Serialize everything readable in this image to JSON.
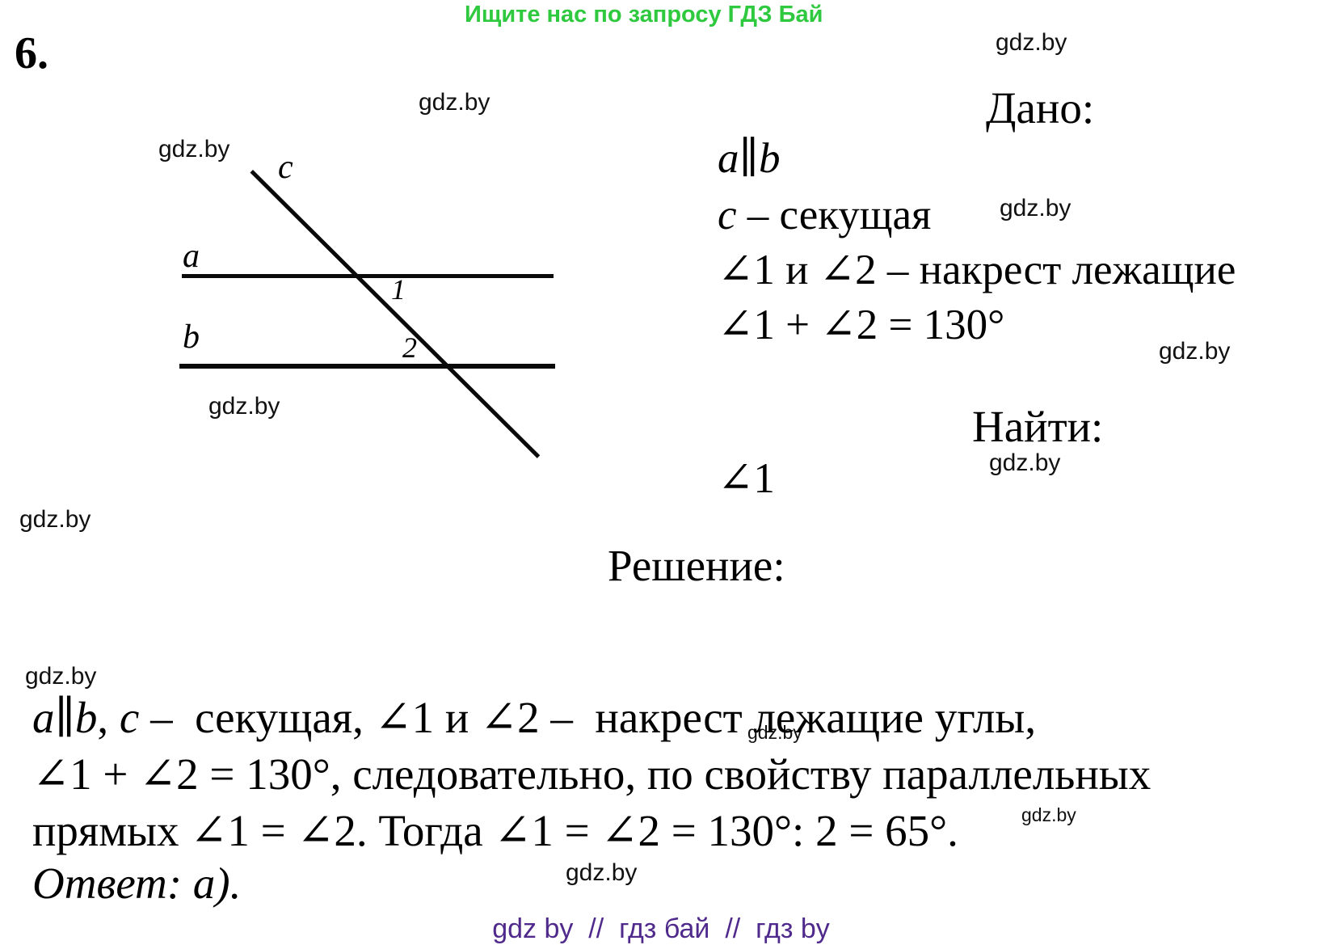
{
  "page": {
    "promo_banner": "Ищите нас по запросу ГДЗ Бай",
    "problem_number": "6.",
    "watermark": "gdz.by",
    "footer_line": "gdz by  //  гдз бай  //  гдз by"
  },
  "colors": {
    "promo_green": "#2ec93e",
    "footer_purple": "#4f2a8c",
    "ink_black": "#0a0a0a"
  },
  "diagram": {
    "line_a_label": "a",
    "line_b_label": "b",
    "transversal_label": "c",
    "angle_1_label": "1",
    "angle_2_label": "2"
  },
  "given": {
    "title": "Дано:",
    "rows": [
      [
        {
          "t": "a",
          "i": true
        },
        {
          "t": "∥"
        },
        {
          "t": "b",
          "i": true
        }
      ],
      [
        {
          "t": "c",
          "i": true
        },
        {
          "t": " – секущая"
        }
      ],
      [
        {
          "t": "∠1 и ∠2 – накрест лежащие"
        }
      ],
      [
        {
          "t": "∠1 + ∠2 = 130°"
        }
      ]
    ]
  },
  "find": {
    "title": "Найти:",
    "value": [
      {
        "t": "∠1"
      }
    ]
  },
  "solution": {
    "title": "Решение:",
    "lines": [
      [
        {
          "t": "a",
          "i": true
        },
        {
          "t": "∥"
        },
        {
          "t": "b",
          "i": true
        },
        {
          "t": ", "
        },
        {
          "t": "c",
          "i": true
        },
        {
          "t": " –  секущая, ∠1 и ∠2 –  накрест лежащие углы,"
        }
      ],
      [
        {
          "t": "∠1 + ∠2 = 130°, следовательно, по свойству параллельных"
        }
      ],
      [
        {
          "t": "прямых ∠1 = ∠2. Тогда ∠1 = ∠2 = 130°: 2 = 65°."
        }
      ],
      [
        {
          "t": "Ответ: а).",
          "i": true
        }
      ]
    ]
  }
}
